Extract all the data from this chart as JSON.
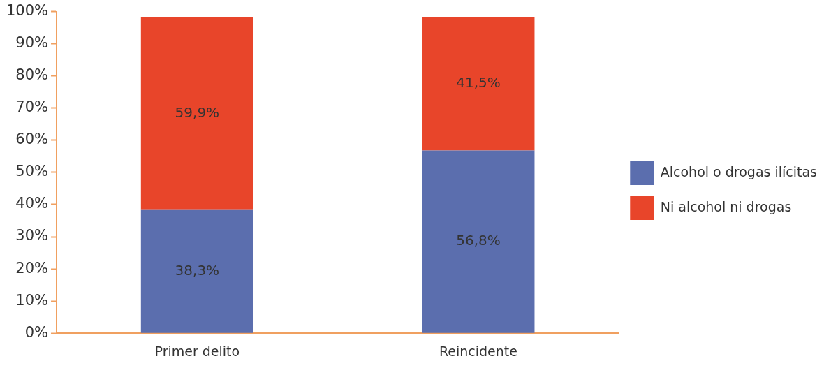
{
  "chart_data": {
    "type": "bar",
    "stacked": true,
    "categories": [
      "Primer delito",
      "Reincidente"
    ],
    "series": [
      {
        "name": "Alcohol o drogas ilícitas",
        "color": "#5b6eae",
        "values": [
          38.3,
          56.8
        ],
        "value_labels": [
          "38,3%",
          "56,8%"
        ]
      },
      {
        "name": "Ni alcohol ni drogas",
        "color": "#e8452a",
        "values": [
          59.9,
          41.5
        ],
        "value_labels": [
          "59,9%",
          "41,5%"
        ]
      }
    ],
    "ylim": [
      0,
      100
    ],
    "yticks": [
      {
        "value": 0,
        "label": "0%"
      },
      {
        "value": 10,
        "label": "10%"
      },
      {
        "value": 20,
        "label": "20%"
      },
      {
        "value": 30,
        "label": "30%"
      },
      {
        "value": 40,
        "label": "40%"
      },
      {
        "value": 50,
        "label": "50%"
      },
      {
        "value": 60,
        "label": "60%"
      },
      {
        "value": 70,
        "label": "70%"
      },
      {
        "value": 80,
        "label": "80%"
      },
      {
        "value": 90,
        "label": "90%"
      },
      {
        "value": 100,
        "label": "100%"
      }
    ],
    "grid": false,
    "legend": "right"
  }
}
